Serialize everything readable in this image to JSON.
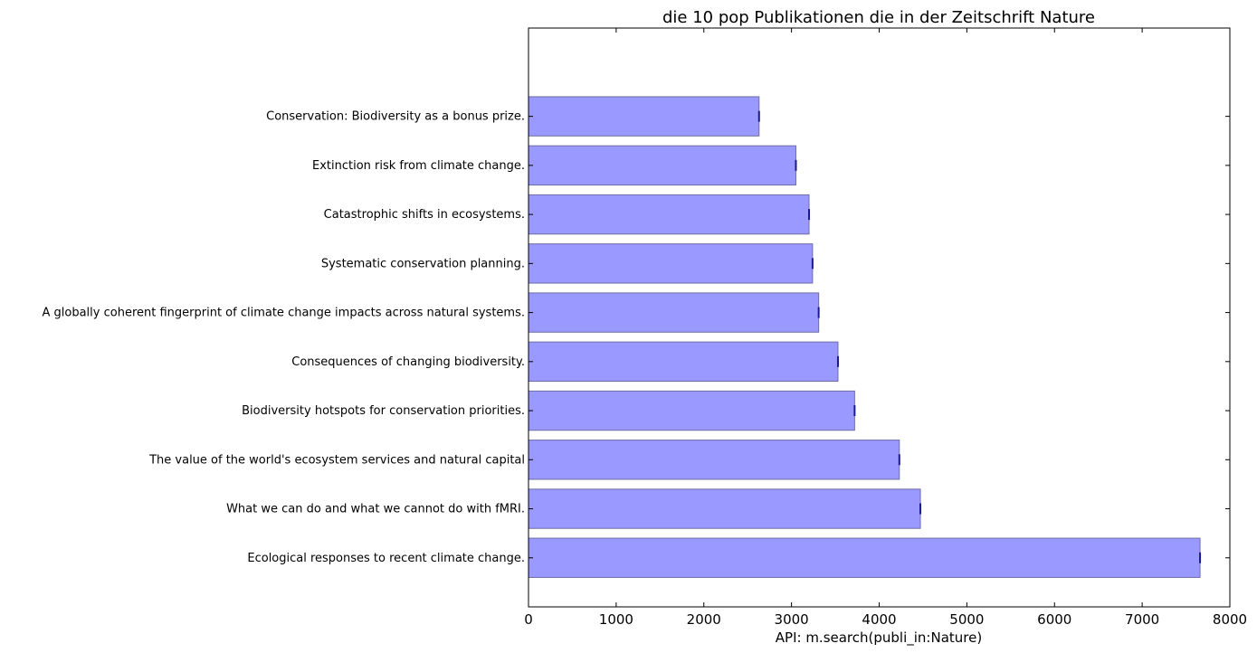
{
  "chart_data": {
    "type": "bar",
    "orientation": "horizontal",
    "title": "die 10 pop Publikationen die in der Zeitschrift Nature",
    "xlabel": "API: m.search(publi_in:Nature)",
    "ylabel": "",
    "xlim": [
      0,
      8000
    ],
    "xticks": [
      0,
      1000,
      2000,
      3000,
      4000,
      5000,
      6000,
      7000,
      8000
    ],
    "grid": false,
    "bar_color": "#9999ff",
    "bar_edge_color": "#6e6ea3",
    "categories": [
      "Ecological responses to recent climate change.",
      "What we can do and what we cannot do with fMRI.",
      "The value of the world's ecosystem services and natural capital",
      "Biodiversity hotspots for conservation priorities.",
      "Consequences of changing biodiversity.",
      "A globally coherent fingerprint of climate change impacts across natural systems.",
      "Systematic conservation planning.",
      "Catastrophic shifts in ecosystems.",
      "Extinction risk from climate change.",
      "Conservation: Biodiversity as a bonus prize."
    ],
    "values": [
      7660,
      4470,
      4230,
      3720,
      3530,
      3310,
      3240,
      3200,
      3050,
      2630
    ]
  }
}
